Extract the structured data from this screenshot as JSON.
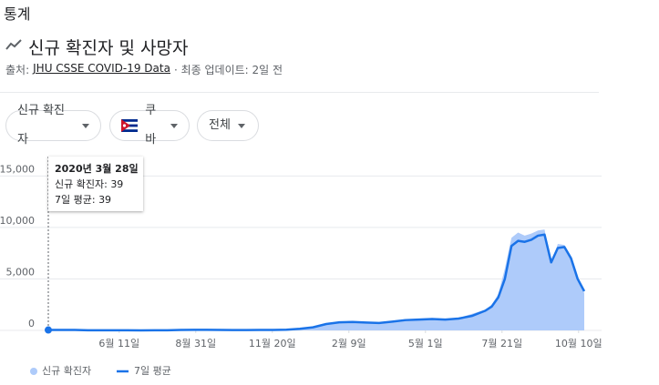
{
  "header": {
    "section": "통계",
    "title": "신규 확진자 및 사망자",
    "source_prefix": "출처:",
    "source_link": "JHU CSSE COVID-19 Data",
    "updated": "· 최종 업데이트: 2일 전"
  },
  "filters": [
    "신규 확진자",
    "쿠바",
    "전체"
  ],
  "tooltip": {
    "date": "2020년 3월 28일",
    "labels": [
      "신규 확진자:",
      "7일 평균:"
    ]
  },
  "chart_data": {
    "type": "area-line",
    "x": [
      "2020-03-28",
      "2020-04-11",
      "2020-04-25",
      "2020-05-09",
      "2020-05-23",
      "2020-06-06",
      "2020-06-20",
      "2020-07-04",
      "2020-07-18",
      "2020-08-01",
      "2020-08-15",
      "2020-08-29",
      "2020-09-12",
      "2020-09-26",
      "2020-10-10",
      "2020-10-24",
      "2020-11-07",
      "2020-11-21",
      "2020-12-05",
      "2020-12-19",
      "2021-01-02",
      "2021-01-16",
      "2021-01-30",
      "2021-02-13",
      "2021-02-27",
      "2021-03-13",
      "2021-03-27",
      "2021-04-10",
      "2021-04-24",
      "2021-05-08",
      "2021-05-22",
      "2021-06-05",
      "2021-06-19",
      "2021-07-03",
      "2021-07-10",
      "2021-07-17",
      "2021-07-24",
      "2021-07-31",
      "2021-08-07",
      "2021-08-14",
      "2021-08-21",
      "2021-08-28",
      "2021-09-04",
      "2021-09-11",
      "2021-09-18",
      "2021-09-25",
      "2021-10-02",
      "2021-10-09",
      "2021-10-16"
    ],
    "series": [
      {
        "name": "신규 확진자",
        "color": "#aecbfa",
        "values": [
          39,
          49,
          40,
          10,
          15,
          8,
          5,
          4,
          10,
          15,
          60,
          50,
          60,
          40,
          30,
          40,
          40,
          50,
          80,
          180,
          350,
          700,
          850,
          800,
          700,
          750,
          850,
          1100,
          1000,
          1200,
          1100,
          1200,
          1600,
          2000,
          2500,
          3500,
          6000,
          9000,
          9500,
          9200,
          9400,
          9700,
          9800,
          6400,
          8400,
          8300,
          7200,
          5200,
          3600
        ]
      },
      {
        "name": "7일 평균",
        "color": "#1a73e8",
        "values": [
          39,
          45,
          42,
          15,
          12,
          10,
          6,
          4,
          8,
          12,
          45,
          55,
          55,
          45,
          35,
          38,
          45,
          45,
          70,
          150,
          300,
          620,
          780,
          820,
          760,
          720,
          850,
          1000,
          1050,
          1100,
          1050,
          1150,
          1400,
          1900,
          2300,
          3200,
          5000,
          8200,
          8700,
          8600,
          8800,
          9200,
          9300,
          6600,
          8000,
          8100,
          7000,
          5000,
          3800
        ]
      }
    ],
    "xlim": [
      "2020-03-28",
      "2021-10-16"
    ],
    "xticks": [
      {
        "value": "2020-06-11",
        "label": "6월 11일"
      },
      {
        "value": "2020-08-31",
        "label": "8월 31일"
      },
      {
        "value": "2020-11-20",
        "label": "11월 20일"
      },
      {
        "value": "2021-02-09",
        "label": "2월 9일"
      },
      {
        "value": "2021-05-01",
        "label": "5월 1일"
      },
      {
        "value": "2021-07-21",
        "label": "7월 21일"
      },
      {
        "value": "2021-10-10",
        "label": "10월 10일"
      }
    ],
    "ylim": [
      0,
      16000
    ],
    "yticks": [
      0,
      {
        "value": 5000,
        "label": "5,000"
      },
      {
        "value": 10000,
        "label": "10,000"
      },
      {
        "value": 15000,
        "label": "15,000"
      }
    ],
    "grid": true
  }
}
